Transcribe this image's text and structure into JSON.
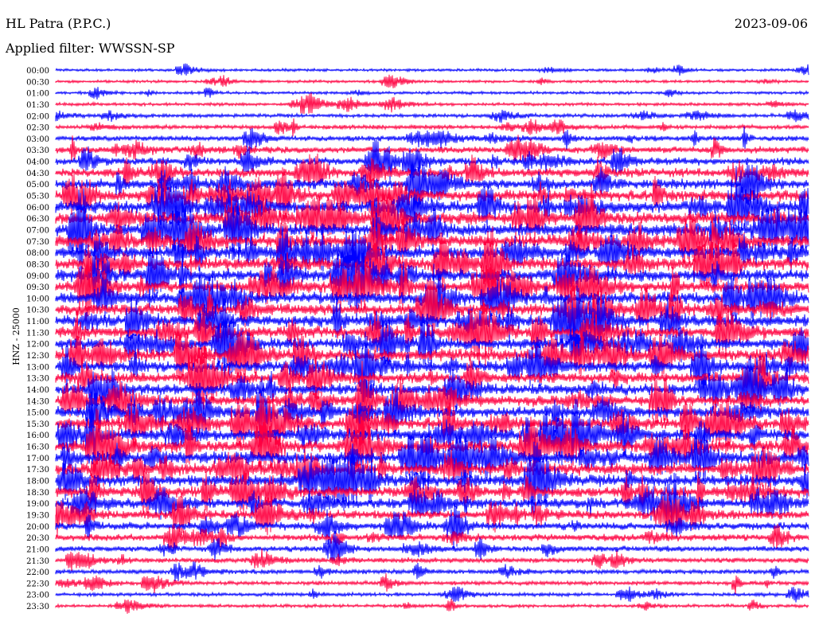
{
  "header": {
    "station": "HL Patra (P.P.C.)",
    "date": "2023-09-06",
    "filter": "Applied filter: WWSSN-SP"
  },
  "chart_data": {
    "type": "line",
    "title": "HL Patra (P.P.C.)",
    "subtitle": "Applied filter: WWSSN-SP",
    "ylabel": "HNZ - 25000",
    "row_labels": [
      "00:00",
      "00:30",
      "01:00",
      "01:30",
      "02:00",
      "02:30",
      "03:00",
      "03:30",
      "04:00",
      "04:30",
      "05:00",
      "05:30",
      "06:00",
      "06:30",
      "07:00",
      "07:30",
      "08:00",
      "08:30",
      "09:00",
      "09:30",
      "10:00",
      "10:30",
      "11:00",
      "11:30",
      "12:00",
      "12:30",
      "13:00",
      "13:30",
      "14:00",
      "14:30",
      "15:00",
      "15:30",
      "16:00",
      "16:30",
      "17:00",
      "17:30",
      "18:00",
      "18:30",
      "19:00",
      "19:30",
      "20:00",
      "20:30",
      "21:00",
      "21:30",
      "22:00",
      "22:30",
      "23:00",
      "23:30"
    ],
    "row_colors": [
      "#0000ff",
      "#ff0040"
    ],
    "relative_noise_level": [
      0.08,
      0.08,
      0.1,
      0.12,
      0.16,
      0.22,
      0.3,
      0.4,
      0.5,
      0.62,
      0.72,
      0.82,
      0.9,
      0.95,
      0.95,
      0.95,
      0.95,
      0.92,
      0.9,
      0.88,
      0.86,
      0.85,
      0.85,
      0.86,
      0.86,
      0.85,
      0.8,
      0.78,
      0.78,
      0.8,
      0.82,
      0.85,
      0.88,
      0.9,
      0.9,
      0.88,
      0.85,
      0.8,
      0.72,
      0.62,
      0.5,
      0.42,
      0.34,
      0.28,
      0.24,
      0.2,
      0.16,
      0.12
    ],
    "grid": false
  }
}
